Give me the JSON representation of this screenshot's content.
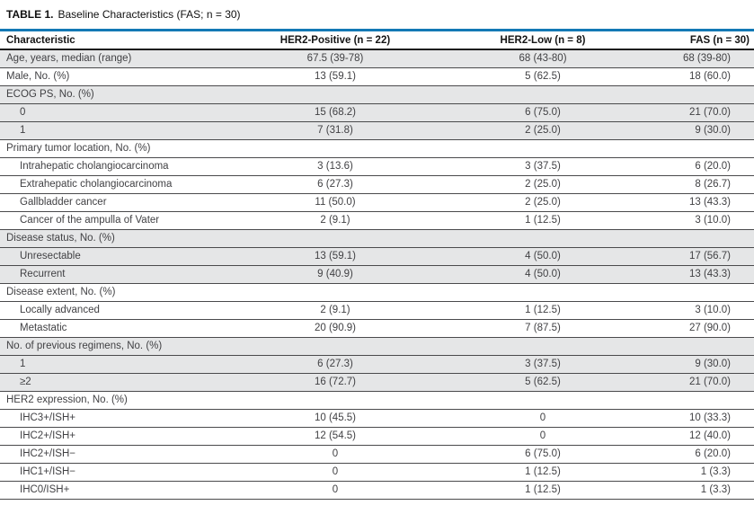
{
  "table": {
    "number": "TABLE 1.",
    "caption": "Baseline Characteristics (FAS; n = 30)",
    "columns": [
      "Characteristic",
      "HER2-Positive (n = 22)",
      "HER2-Low (n = 8)",
      "FAS (n = 30)"
    ],
    "sections": [
      {
        "rows": [
          {
            "label": "Age, years, median (range)",
            "values": [
              "67.5 (39-78)",
              "68 (43-80)",
              "68 (39-80)"
            ]
          }
        ]
      },
      {
        "rows": [
          {
            "label": "Male, No. (%)",
            "values": [
              "13 (59.1)",
              "5 (62.5)",
              "18 (60.0)"
            ]
          }
        ]
      },
      {
        "rows": [
          {
            "label": "ECOG PS, No. (%)",
            "values": [
              "",
              "",
              ""
            ]
          },
          {
            "label": "0",
            "values": [
              "15 (68.2)",
              "6 (75.0)",
              "21 (70.0)"
            ]
          },
          {
            "label": "1",
            "values": [
              "7 (31.8)",
              "2 (25.0)",
              "9 (30.0)"
            ]
          }
        ]
      },
      {
        "rows": [
          {
            "label": "Primary tumor location, No. (%)",
            "values": [
              "",
              "",
              ""
            ]
          },
          {
            "label": "Intrahepatic cholangiocarcinoma",
            "values": [
              "3 (13.6)",
              "3 (37.5)",
              "6 (20.0)"
            ]
          },
          {
            "label": "Extrahepatic cholangiocarcinoma",
            "values": [
              "6 (27.3)",
              "2 (25.0)",
              "8 (26.7)"
            ]
          },
          {
            "label": "Gallbladder cancer",
            "values": [
              "11 (50.0)",
              "2 (25.0)",
              "13 (43.3)"
            ]
          },
          {
            "label": "Cancer of the ampulla of Vater",
            "values": [
              "2 (9.1)",
              "1 (12.5)",
              "3 (10.0)"
            ]
          }
        ]
      },
      {
        "rows": [
          {
            "label": "Disease status, No. (%)",
            "values": [
              "",
              "",
              ""
            ]
          },
          {
            "label": "Unresectable",
            "values": [
              "13 (59.1)",
              "4 (50.0)",
              "17 (56.7)"
            ]
          },
          {
            "label": "Recurrent",
            "values": [
              "9 (40.9)",
              "4 (50.0)",
              "13 (43.3)"
            ]
          }
        ]
      },
      {
        "rows": [
          {
            "label": "Disease extent, No. (%)",
            "values": [
              "",
              "",
              ""
            ]
          },
          {
            "label": "Locally advanced",
            "values": [
              "2 (9.1)",
              "1 (12.5)",
              "3 (10.0)"
            ]
          },
          {
            "label": "Metastatic",
            "values": [
              "20 (90.9)",
              "7 (87.5)",
              "27 (90.0)"
            ]
          }
        ]
      },
      {
        "rows": [
          {
            "label": "No. of previous regimens, No. (%)",
            "values": [
              "",
              "",
              ""
            ]
          },
          {
            "label": "1",
            "values": [
              "6 (27.3)",
              "3 (37.5)",
              "9 (30.0)"
            ]
          },
          {
            "label": "≥2",
            "values": [
              "16 (72.7)",
              "5 (62.5)",
              "21 (70.0)"
            ]
          }
        ]
      },
      {
        "rows": [
          {
            "label": "HER2 expression, No. (%)",
            "values": [
              "",
              "",
              ""
            ]
          },
          {
            "label": "IHC3+/ISH+",
            "values": [
              "10 (45.5)",
              "0",
              "10 (33.3)"
            ]
          },
          {
            "label": "IHC2+/ISH+",
            "values": [
              "12 (54.5)",
              "0",
              "12 (40.0)"
            ]
          },
          {
            "label": "IHC2+/ISH−",
            "values": [
              "0",
              "6 (75.0)",
              "6 (20.0)"
            ]
          },
          {
            "label": "IHC1+/ISH−",
            "values": [
              "0",
              "1 (12.5)",
              "1 (3.3)"
            ]
          },
          {
            "label": "IHC0/ISH+",
            "values": [
              "0",
              "1 (12.5)",
              "1 (3.3)"
            ]
          }
        ]
      }
    ]
  },
  "colors": {
    "accent_blue": "#1379b5",
    "row_shade": "#e5e6e7",
    "row_line": "#4a4a4c",
    "header_line": "#1c1c1c",
    "body_text": "#414144",
    "header_text": "#141414"
  }
}
